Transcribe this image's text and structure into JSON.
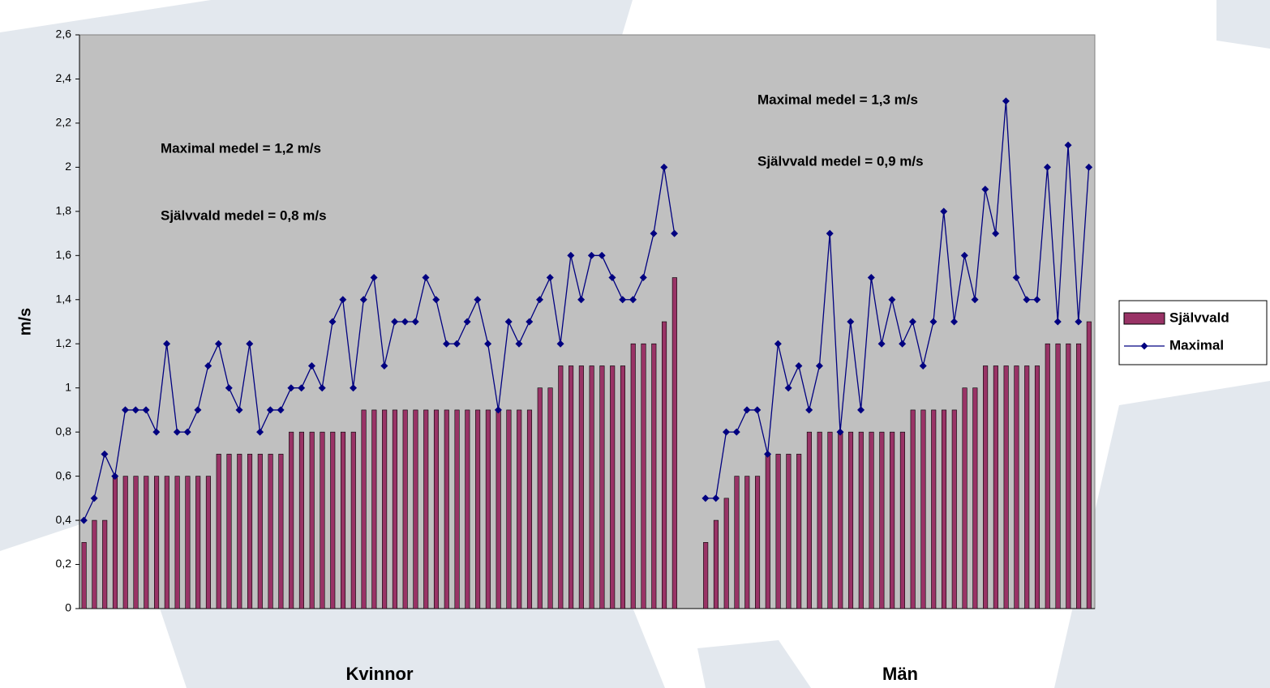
{
  "chart_data": {
    "type": "bar-line",
    "y_label": "m/s",
    "annotations": [
      "Maximal medel = 1,2 m/s",
      "Självvald medel = 0,8 m/s",
      "Maximal medel = 1,3 m/s",
      "Självvald medel = 0,9 m/s"
    ],
    "group_labels": [
      "Kvinnor",
      "Män"
    ],
    "categories": [
      null,
      null,
      null,
      null,
      null,
      null,
      null,
      null,
      null,
      null,
      null,
      null,
      null,
      null,
      null,
      null,
      null,
      null,
      null,
      null,
      null,
      null,
      null,
      null,
      null,
      null,
      null,
      null,
      null,
      null,
      null,
      null,
      null,
      null,
      null,
      null,
      null,
      null,
      null,
      null,
      null,
      null,
      null,
      null,
      null,
      null,
      null,
      null,
      null,
      null,
      null,
      null,
      null,
      null,
      null,
      null,
      null,
      null,
      null,
      null,
      null,
      null,
      null,
      null,
      null,
      null,
      null,
      null,
      null,
      null,
      null,
      null,
      null,
      null,
      null,
      null,
      null,
      null,
      null,
      null,
      null,
      null,
      null,
      null,
      null,
      null,
      null,
      null,
      null,
      null,
      null,
      null,
      null,
      null,
      null,
      null,
      null,
      null
    ],
    "series": [
      {
        "name": "Självvald",
        "mark": "bar",
        "color": "#993366",
        "values": [
          0.3,
          0.4,
          0.4,
          0.6,
          0.6,
          0.6,
          0.6,
          0.6,
          0.6,
          0.6,
          0.6,
          0.6,
          0.6,
          0.7,
          0.7,
          0.7,
          0.7,
          0.7,
          0.7,
          0.7,
          0.8,
          0.8,
          0.8,
          0.8,
          0.8,
          0.8,
          0.8,
          0.9,
          0.9,
          0.9,
          0.9,
          0.9,
          0.9,
          0.9,
          0.9,
          0.9,
          0.9,
          0.9,
          0.9,
          0.9,
          0.9,
          0.9,
          0.9,
          0.9,
          1.0,
          1.0,
          1.1,
          1.1,
          1.1,
          1.1,
          1.1,
          1.1,
          1.1,
          1.2,
          1.2,
          1.2,
          1.3,
          1.5,
          null,
          null,
          0.3,
          0.4,
          0.5,
          0.6,
          0.6,
          0.6,
          0.7,
          0.7,
          0.7,
          0.7,
          0.8,
          0.8,
          0.8,
          0.8,
          0.8,
          0.8,
          0.8,
          0.8,
          0.8,
          0.8,
          0.9,
          0.9,
          0.9,
          0.9,
          0.9,
          1.0,
          1.0,
          1.1,
          1.1,
          1.1,
          1.1,
          1.1,
          1.1,
          1.2,
          1.2,
          1.2,
          1.2,
          1.3
        ]
      },
      {
        "name": "Maximal",
        "mark": "line",
        "color": "#000080",
        "values": [
          0.4,
          0.5,
          0.7,
          0.6,
          0.9,
          0.9,
          0.9,
          0.8,
          1.2,
          0.8,
          0.8,
          0.9,
          1.1,
          1.2,
          1.0,
          0.9,
          1.2,
          0.8,
          0.9,
          0.9,
          1.0,
          1.0,
          1.1,
          1.0,
          1.3,
          1.4,
          1.0,
          1.4,
          1.5,
          1.1,
          1.3,
          1.3,
          1.3,
          1.5,
          1.4,
          1.2,
          1.2,
          1.3,
          1.4,
          1.2,
          0.9,
          1.3,
          1.2,
          1.3,
          1.4,
          1.5,
          1.2,
          1.6,
          1.4,
          1.6,
          1.6,
          1.5,
          1.4,
          1.4,
          1.5,
          1.7,
          2.0,
          1.7,
          null,
          null,
          0.5,
          0.5,
          0.8,
          0.8,
          0.9,
          0.9,
          0.7,
          1.2,
          1.0,
          1.1,
          0.9,
          1.1,
          1.7,
          0.8,
          1.3,
          0.9,
          1.5,
          1.2,
          1.4,
          1.2,
          1.3,
          1.1,
          1.3,
          1.8,
          1.3,
          1.6,
          1.4,
          1.9,
          1.7,
          2.3,
          1.5,
          1.4,
          1.4,
          2.0,
          1.3,
          2.1,
          1.3,
          2.0
        ]
      }
    ],
    "ylim": [
      0,
      2.6
    ],
    "yticks": [
      0,
      {
        "value": 0.2,
        "label": "0,2"
      },
      {
        "value": 0.4,
        "label": "0,4"
      },
      {
        "value": 0.6,
        "label": "0,6"
      },
      {
        "value": 0.8,
        "label": "0,8"
      },
      1,
      {
        "value": 1.2,
        "label": "1,2"
      },
      {
        "value": 1.4,
        "label": "1,4"
      },
      {
        "value": 1.6,
        "label": "1,6"
      },
      {
        "value": 1.8,
        "label": "1,8"
      },
      2,
      {
        "value": 2.2,
        "label": "2,2"
      },
      {
        "value": 2.4,
        "label": "2,4"
      },
      {
        "value": 2.6,
        "label": "2,6"
      }
    ],
    "plot_background": "#c0c0c0",
    "legend": "right"
  }
}
